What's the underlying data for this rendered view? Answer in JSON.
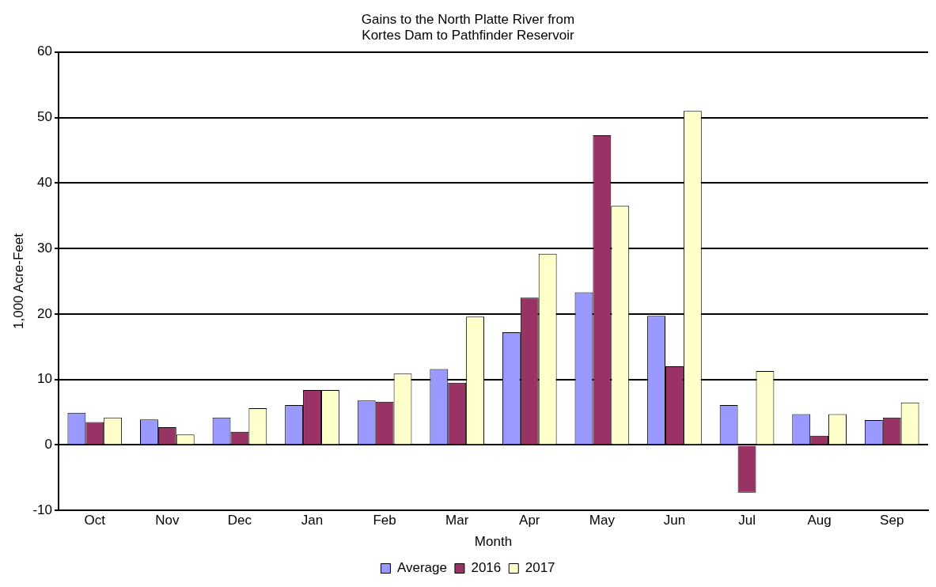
{
  "chart_data": {
    "type": "bar",
    "title": "Gains to the North Platte River from\nKortes Dam to Pathfinder Reservoir",
    "xlabel": "Month",
    "ylabel": "1,000 Acre-Feet",
    "categories": [
      "Oct",
      "Nov",
      "Dec",
      "Jan",
      "Feb",
      "Mar",
      "Apr",
      "May",
      "Jun",
      "Jul",
      "Aug",
      "Sep"
    ],
    "series": [
      {
        "name": "Average",
        "color": "#9999ff",
        "values": [
          4.9,
          3.9,
          4.2,
          6.1,
          6.8,
          11.6,
          17.2,
          23.3,
          19.7,
          6.1,
          4.7,
          3.8
        ]
      },
      {
        "name": "2016",
        "color": "#993366",
        "values": [
          3.5,
          2.7,
          2.0,
          8.4,
          6.6,
          9.5,
          22.5,
          47.3,
          12.0,
          -7.3,
          1.4,
          4.2
        ]
      },
      {
        "name": "2017",
        "color": "#ffffcc",
        "values": [
          4.2,
          1.6,
          5.6,
          8.4,
          10.9,
          19.6,
          29.2,
          36.5,
          51.0,
          11.3,
          4.7,
          6.5
        ]
      }
    ],
    "ylim": [
      -10,
      60
    ],
    "yticks": [
      -10,
      0,
      10,
      20,
      30,
      40,
      50,
      60
    ],
    "grid": "y",
    "legend": "bottom"
  }
}
